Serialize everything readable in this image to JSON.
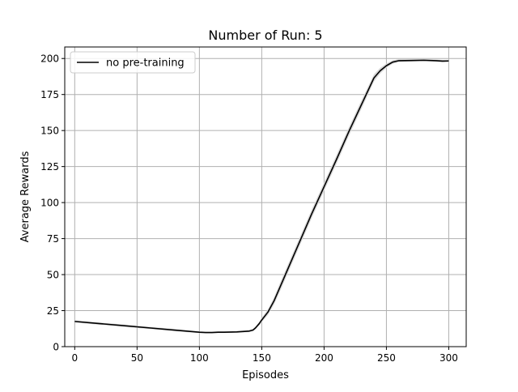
{
  "chart_data": {
    "type": "line",
    "title": "Number of Run: 5",
    "xlabel": "Episodes",
    "ylabel": "Average Rewards",
    "xlim": [
      -8,
      314
    ],
    "ylim": [
      0,
      208
    ],
    "xticks": [
      0,
      50,
      100,
      150,
      200,
      250,
      300
    ],
    "yticks": [
      0,
      25,
      50,
      75,
      100,
      125,
      150,
      175,
      200
    ],
    "grid": true,
    "legend_position": "top-left",
    "series": [
      {
        "name": "no pre-training",
        "color": "#000000",
        "band_color": "#d8d8d8",
        "x": [
          0,
          20,
          40,
          60,
          80,
          100,
          105,
          110,
          115,
          120,
          130,
          140,
          143,
          145,
          148,
          150,
          155,
          160,
          165,
          170,
          175,
          180,
          190,
          200,
          210,
          220,
          230,
          240,
          245,
          250,
          255,
          260,
          270,
          280,
          290,
          295,
          300
        ],
        "y": [
          17.5,
          16.0,
          14.5,
          13.0,
          11.5,
          10.0,
          9.8,
          9.8,
          10.0,
          10.0,
          10.2,
          10.8,
          11.5,
          13.0,
          16.0,
          18.5,
          24.0,
          32.0,
          42.0,
          52.0,
          62.0,
          72.0,
          92.0,
          111.0,
          130.0,
          149.5,
          168.0,
          186.5,
          191.5,
          195.0,
          197.5,
          198.5,
          198.6,
          198.8,
          198.5,
          198.2,
          198.3
        ],
        "band": [
          0.8,
          0.8,
          0.8,
          0.8,
          0.8,
          0.6,
          0.6,
          0.6,
          0.6,
          0.6,
          0.6,
          0.7,
          0.8,
          1.0,
          1.2,
          1.5,
          2.0,
          2.5,
          3.0,
          3.0,
          3.0,
          3.0,
          3.0,
          3.0,
          3.0,
          3.0,
          3.0,
          2.5,
          2.0,
          1.5,
          1.2,
          1.0,
          0.8,
          0.8,
          0.8,
          0.8,
          0.8
        ]
      }
    ]
  }
}
